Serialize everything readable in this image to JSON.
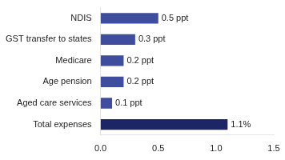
{
  "chart_data": {
    "type": "bar",
    "orientation": "horizontal",
    "categories": [
      "NDIS",
      "GST transfer to states",
      "Medicare",
      "Age pension",
      "Aged care services",
      "Total expenses"
    ],
    "values": [
      0.5,
      0.3,
      0.2,
      0.2,
      0.1,
      1.1
    ],
    "value_labels": [
      "0.5 ppt",
      "0.3 ppt",
      "0.2 ppt",
      "0.2 ppt",
      "0.1 ppt",
      "1.1%"
    ],
    "data_labels": true,
    "colors": [
      "#3F4D9E",
      "#3F4D9E",
      "#3F4D9E",
      "#3F4D9E",
      "#3F4D9E",
      "#1C2566"
    ],
    "xlim": [
      0,
      1.5
    ],
    "xticks": [
      {
        "value": 0,
        "label": "0.0"
      },
      0.5,
      {
        "value": 1,
        "label": "1.0"
      },
      1.5
    ],
    "grid": false
  }
}
